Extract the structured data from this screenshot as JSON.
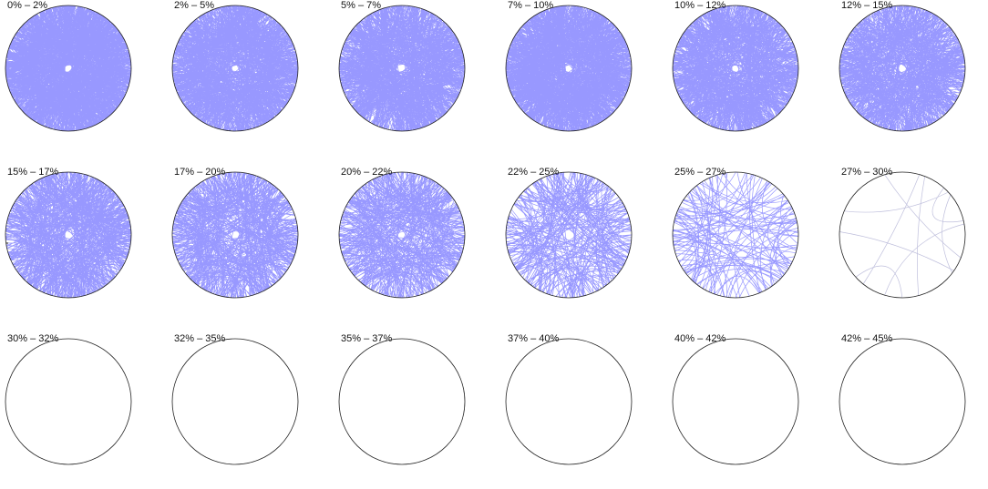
{
  "chart_data": {
    "type": "chord",
    "colors": {
      "edge": "#1a1aff",
      "faint_edge": "#b8b8d8",
      "ring": "#222222"
    },
    "panels": [
      {
        "label": "0% – 2%",
        "density": 1.0
      },
      {
        "label": "2% – 5%",
        "density": 0.8
      },
      {
        "label": "5% – 7%",
        "density": 0.72
      },
      {
        "label": "7% – 10%",
        "density": 0.9
      },
      {
        "label": "10% – 12%",
        "density": 0.68
      },
      {
        "label": "12% – 15%",
        "density": 0.6
      },
      {
        "label": "15% – 17%",
        "density": 0.52
      },
      {
        "label": "17% – 20%",
        "density": 0.45
      },
      {
        "label": "20% – 22%",
        "density": 0.38
      },
      {
        "label": "22% – 25%",
        "density": 0.24
      },
      {
        "label": "25% – 27%",
        "density": 0.12
      },
      {
        "label": "27% – 30%",
        "density": 0.01
      },
      {
        "label": "30% – 32%",
        "density": 0
      },
      {
        "label": "32% – 35%",
        "density": 0
      },
      {
        "label": "35% – 37%",
        "density": 0
      },
      {
        "label": "37% – 40%",
        "density": 0
      },
      {
        "label": "40% – 42%",
        "density": 0
      },
      {
        "label": "42% – 45%",
        "density": 0
      }
    ]
  }
}
